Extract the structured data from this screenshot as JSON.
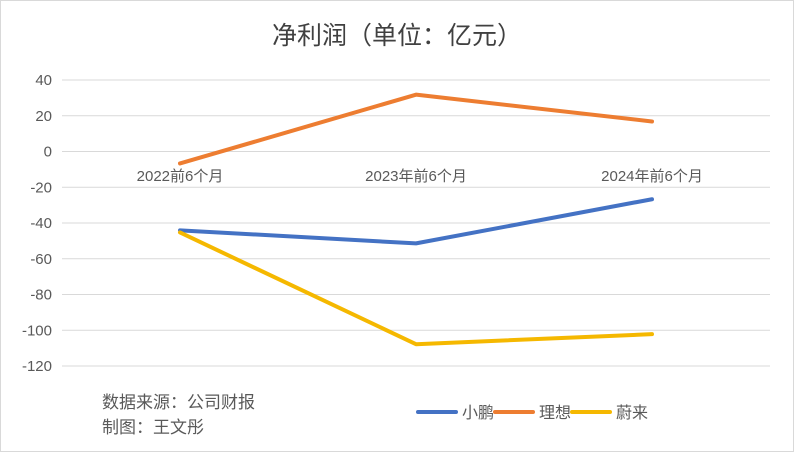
{
  "chart_data": {
    "type": "line",
    "title": "净利润（单位：亿元）",
    "categories": [
      "2022前6个月",
      "2023年前6个月",
      "2024年前6个月"
    ],
    "yticks": [
      40,
      20,
      0,
      -20,
      -40,
      -60,
      -80,
      -100,
      -120
    ],
    "ylim": [
      -120,
      40
    ],
    "grid": true,
    "legend_position": "bottom-right",
    "series": [
      {
        "name": "小鹏",
        "color": "#4472C4",
        "values": [
          -44.1,
          -51.4,
          -26.7
        ]
      },
      {
        "name": "理想",
        "color": "#ED7D31",
        "values": [
          -6.7,
          31.8,
          16.8
        ]
      },
      {
        "name": "蔚来",
        "color": "#F5B800",
        "values": [
          -45.3,
          -107.8,
          -102.2
        ]
      }
    ],
    "notes": [
      "数据来源：公司财报",
      "制图：王文彤"
    ]
  }
}
